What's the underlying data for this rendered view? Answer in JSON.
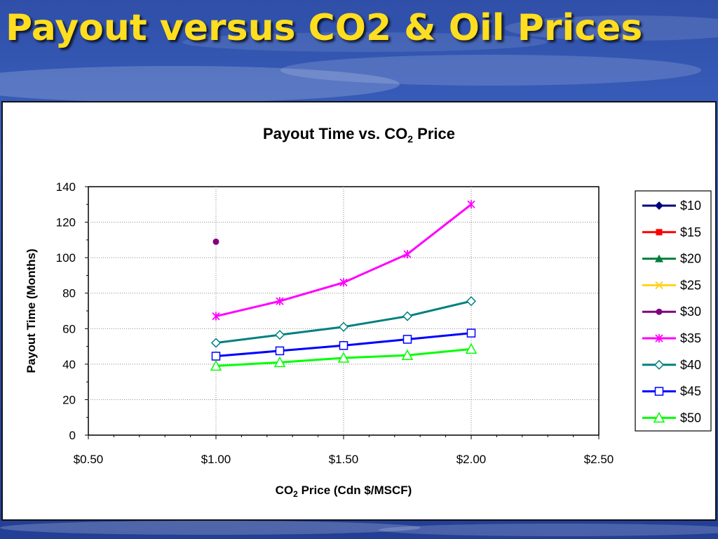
{
  "slide": {
    "title": "Payout versus CO2 & Oil Prices"
  },
  "chart_data": {
    "type": "line",
    "title": "Payout Time vs. CO₂ Price",
    "title_main": "Payout Time vs. CO",
    "title_sub": "2",
    "title_tail": " Price",
    "xlabel": "CO₂ Price (Cdn $/MSCF)",
    "xlabel_main": "CO",
    "xlabel_sub": "2",
    "xlabel_tail": " Price (Cdn $/MSCF)",
    "ylabel": "Payout Time (Months)",
    "xlim": [
      0.5,
      2.5
    ],
    "ylim": [
      0,
      140
    ],
    "x_ticks": [
      0.5,
      1.0,
      1.5,
      2.0,
      2.5
    ],
    "x_tick_labels": [
      "$0.50",
      "$1.00",
      "$1.50",
      "$2.00",
      "$2.50"
    ],
    "y_ticks": [
      0,
      20,
      40,
      60,
      80,
      100,
      120,
      140
    ],
    "y_tick_labels": [
      "0",
      "20",
      "40",
      "60",
      "80",
      "100",
      "120",
      "140"
    ],
    "grid": "dotted",
    "legend_position": "right",
    "series": [
      {
        "name": "$10",
        "color": "#000080",
        "marker": "diamond-filled",
        "x": [],
        "y": []
      },
      {
        "name": "$15",
        "color": "#ff0000",
        "marker": "square-filled",
        "x": [],
        "y": []
      },
      {
        "name": "$20",
        "color": "#007f3a",
        "marker": "triangle-filled",
        "x": [],
        "y": []
      },
      {
        "name": "$25",
        "color": "#ffd21f",
        "marker": "x",
        "x": [],
        "y": []
      },
      {
        "name": "$30",
        "color": "#800080",
        "marker": "circle-filled",
        "x": [
          1.0
        ],
        "y": [
          109
        ]
      },
      {
        "name": "$35",
        "color": "#ff00ff",
        "marker": "star",
        "x": [
          1.0,
          1.25,
          1.5,
          1.75,
          2.0
        ],
        "y": [
          67,
          75.5,
          86,
          102,
          130
        ]
      },
      {
        "name": "$40",
        "color": "#008080",
        "marker": "diamond-open",
        "x": [
          1.0,
          1.25,
          1.5,
          1.75,
          2.0
        ],
        "y": [
          52,
          56.5,
          61,
          67,
          75.5
        ]
      },
      {
        "name": "$45",
        "color": "#0000ff",
        "marker": "square-open",
        "x": [
          1.0,
          1.25,
          1.5,
          1.75,
          2.0
        ],
        "y": [
          44.5,
          47.5,
          50.5,
          54,
          57.5
        ]
      },
      {
        "name": "$50",
        "color": "#00ff00",
        "marker": "triangle-open",
        "x": [
          1.0,
          1.25,
          1.5,
          1.75,
          2.0
        ],
        "y": [
          39,
          41,
          43.5,
          45,
          48.5
        ]
      }
    ]
  }
}
